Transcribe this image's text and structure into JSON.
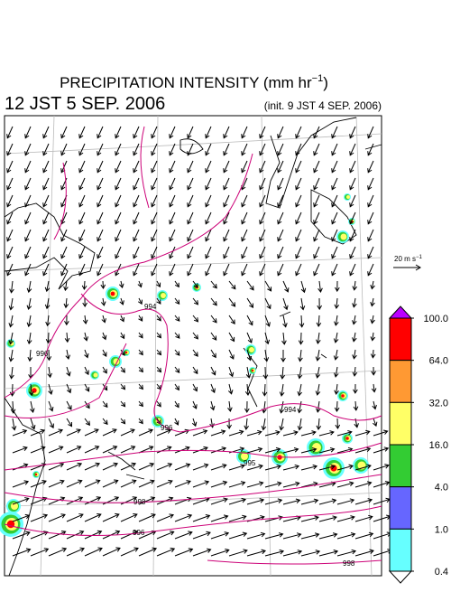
{
  "header": {
    "title": {
      "main": "PRECIPITATION INTENSITY (mm hr",
      "exponent": "−1",
      "close": ")"
    },
    "valid_time": "12 JST 5 SEP. 2006",
    "init_time": "(init. 9 JST 4 SEP. 2006)"
  },
  "vector_scale": {
    "text": "20 m s",
    "exponent": "−1"
  },
  "isobar_labels": [
    994,
    994,
    995,
    996,
    996,
    998,
    996,
    998
  ],
  "colorbar": {
    "levels": [
      {
        "value": 100,
        "label": "100.0"
      },
      {
        "value": 64,
        "label": "64.0"
      },
      {
        "value": 32,
        "label": "32.0"
      },
      {
        "value": 16,
        "label": "16.0"
      },
      {
        "value": 4,
        "label": "4.0"
      },
      {
        "value": 1,
        "label": "1.0"
      },
      {
        "value": 0.4,
        "label": "0.4"
      }
    ],
    "colors": [
      "#ff0000",
      "#ff9933",
      "#ffff66",
      "#33cc33",
      "#6666ff",
      "#66ffff"
    ],
    "over_color": "#bb00ff",
    "under_color": "#ffffff"
  }
}
